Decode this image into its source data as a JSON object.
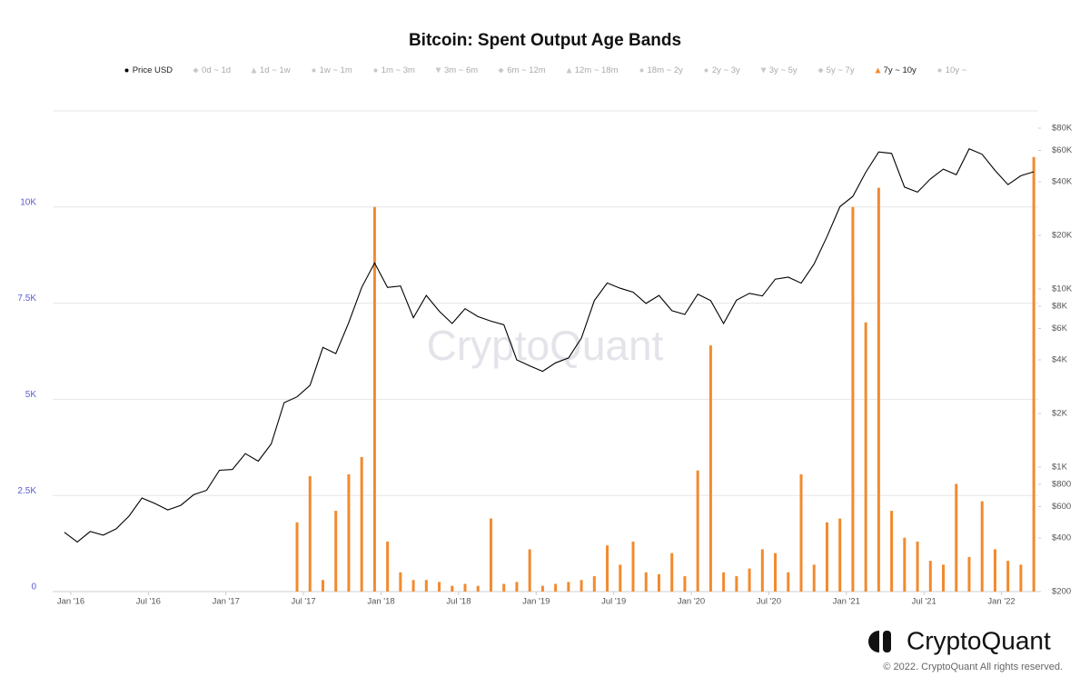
{
  "chart_data": {
    "type": "line-bar",
    "title": "Bitcoin: Spent Output Age Bands",
    "watermark": "CryptoQuant",
    "brand": "CryptoQuant",
    "copyright": "© 2022. CryptoQuant All rights reserved.",
    "x": [
      "2015-12",
      "2016-01",
      "2016-02",
      "2016-03",
      "2016-04",
      "2016-05",
      "2016-06",
      "2016-07",
      "2016-08",
      "2016-09",
      "2016-10",
      "2016-11",
      "2016-12",
      "2017-01",
      "2017-02",
      "2017-03",
      "2017-04",
      "2017-05",
      "2017-06",
      "2017-07",
      "2017-08",
      "2017-09",
      "2017-10",
      "2017-11",
      "2017-12",
      "2018-01",
      "2018-02",
      "2018-03",
      "2018-04",
      "2018-05",
      "2018-06",
      "2018-07",
      "2018-08",
      "2018-09",
      "2018-10",
      "2018-11",
      "2018-12",
      "2019-01",
      "2019-02",
      "2019-03",
      "2019-04",
      "2019-05",
      "2019-06",
      "2019-07",
      "2019-08",
      "2019-09",
      "2019-10",
      "2019-11",
      "2019-12",
      "2020-01",
      "2020-02",
      "2020-03",
      "2020-04",
      "2020-05",
      "2020-06",
      "2020-07",
      "2020-08",
      "2020-09",
      "2020-10",
      "2020-11",
      "2020-12",
      "2021-01",
      "2021-02",
      "2021-03",
      "2021-04",
      "2021-05",
      "2021-06",
      "2021-07",
      "2021-08",
      "2021-09",
      "2021-10",
      "2021-11",
      "2021-12",
      "2022-01",
      "2022-02",
      "2022-03"
    ],
    "series": [
      {
        "name": "Price USD",
        "symbol": "circle",
        "color": "#000000",
        "visible": true,
        "axis": "y2",
        "kind": "line",
        "values": [
          430,
          380,
          435,
          415,
          450,
          530,
          670,
          625,
          575,
          610,
          700,
          740,
          960,
          970,
          1190,
          1080,
          1350,
          2300,
          2480,
          2880,
          4700,
          4340,
          6470,
          10200,
          14000,
          10200,
          10400,
          6900,
          9200,
          7500,
          6400,
          7750,
          7000,
          6600,
          6300,
          4000,
          3700,
          3450,
          3850,
          4100,
          5300,
          8600,
          10800,
          10100,
          9600,
          8300,
          9200,
          7550,
          7200,
          9350,
          8600,
          6400,
          8650,
          9450,
          9140,
          11350,
          11650,
          10780,
          13800,
          19700,
          29000,
          33100,
          45200,
          58800,
          57700,
          37300,
          35000,
          41500,
          47100,
          43800,
          61300,
          57000,
          46300,
          38500,
          43200,
          45500
        ]
      },
      {
        "name": "0d ~ 1d",
        "symbol": "diamond",
        "color": "#c8c8c8",
        "visible": false
      },
      {
        "name": "1d ~ 1w",
        "symbol": "triangle",
        "color": "#c8c8c8",
        "visible": false
      },
      {
        "name": "1w ~ 1m",
        "symbol": "circle",
        "color": "#c8c8c8",
        "visible": false
      },
      {
        "name": "1m ~ 3m",
        "symbol": "circle",
        "color": "#c8c8c8",
        "visible": false
      },
      {
        "name": "3m ~ 6m",
        "symbol": "triangle-down",
        "color": "#c8c8c8",
        "visible": false
      },
      {
        "name": "6m ~ 12m",
        "symbol": "diamond",
        "color": "#c8c8c8",
        "visible": false
      },
      {
        "name": "12m ~ 18m",
        "symbol": "triangle",
        "color": "#c8c8c8",
        "visible": false
      },
      {
        "name": "18m ~ 2y",
        "symbol": "circle",
        "color": "#c8c8c8",
        "visible": false
      },
      {
        "name": "2y ~ 3y",
        "symbol": "circle",
        "color": "#c8c8c8",
        "visible": false
      },
      {
        "name": "3y ~ 5y",
        "symbol": "triangle-down",
        "color": "#c8c8c8",
        "visible": false
      },
      {
        "name": "5y ~ 7y",
        "symbol": "diamond",
        "color": "#c8c8c8",
        "visible": false
      },
      {
        "name": "7y ~ 10y",
        "symbol": "triangle",
        "color": "#f28a2e",
        "visible": true,
        "axis": "y",
        "kind": "bar",
        "values": [
          0,
          0,
          0,
          0,
          0,
          0,
          0,
          0,
          0,
          0,
          0,
          0,
          0,
          0,
          0,
          0,
          0,
          0,
          1800,
          3000,
          300,
          2100,
          3050,
          3500,
          10000,
          1300,
          500,
          300,
          300,
          250,
          150,
          200,
          150,
          1900,
          200,
          250,
          1100,
          150,
          200,
          250,
          300,
          400,
          1200,
          700,
          1300,
          500,
          450,
          1000,
          400,
          3150,
          6400,
          500,
          400,
          600,
          1100,
          1000,
          500,
          3050,
          700,
          1800,
          1900,
          10000,
          7000,
          10500,
          2100,
          1400,
          1300,
          800,
          700,
          2800,
          900,
          2350,
          1100,
          800,
          700,
          11300
        ]
      },
      {
        "name": "10y ~",
        "symbol": "circle",
        "color": "#c8c8c8",
        "visible": false
      }
    ],
    "ylim": [
      0,
      12500
    ],
    "yticks": [
      0,
      {
        "value": 2500,
        "label": "2.5K"
      },
      {
        "value": 5000,
        "label": "5K"
      },
      {
        "value": 7500,
        "label": "7.5K"
      },
      {
        "value": 10000,
        "label": "10K"
      }
    ],
    "y2log": true,
    "y2lim": [
      200,
      100000
    ],
    "y2ticks": [
      {
        "value": 200,
        "label": "$200"
      },
      {
        "value": 400,
        "label": "$400"
      },
      {
        "value": 600,
        "label": "$600"
      },
      {
        "value": 800,
        "label": "$800"
      },
      {
        "value": 1000,
        "label": "$1K"
      },
      {
        "value": 2000,
        "label": "$2K"
      },
      {
        "value": 4000,
        "label": "$4K"
      },
      {
        "value": 6000,
        "label": "$6K"
      },
      {
        "value": 8000,
        "label": "$8K"
      },
      {
        "value": 10000,
        "label": "$10K"
      },
      {
        "value": 20000,
        "label": "$20K"
      },
      {
        "value": 40000,
        "label": "$40K"
      },
      {
        "value": 60000,
        "label": "$60K"
      },
      {
        "value": 80000,
        "label": "$80K"
      }
    ],
    "xticks": [
      {
        "value": "2016-01",
        "label": "Jan '16"
      },
      {
        "value": "2016-07",
        "label": "Jul '16"
      },
      {
        "value": "2017-01",
        "label": "Jan '17"
      },
      {
        "value": "2017-07",
        "label": "Jul '17"
      },
      {
        "value": "2018-01",
        "label": "Jan '18"
      },
      {
        "value": "2018-07",
        "label": "Jul '18"
      },
      {
        "value": "2019-01",
        "label": "Jan '19"
      },
      {
        "value": "2019-07",
        "label": "Jul '19"
      },
      {
        "value": "2020-01",
        "label": "Jan '20"
      },
      {
        "value": "2020-07",
        "label": "Jul '20"
      },
      {
        "value": "2021-01",
        "label": "Jan '21"
      },
      {
        "value": "2021-07",
        "label": "Jul '21"
      },
      {
        "value": "2022-01",
        "label": "Jan '22"
      }
    ],
    "grid": true
  }
}
